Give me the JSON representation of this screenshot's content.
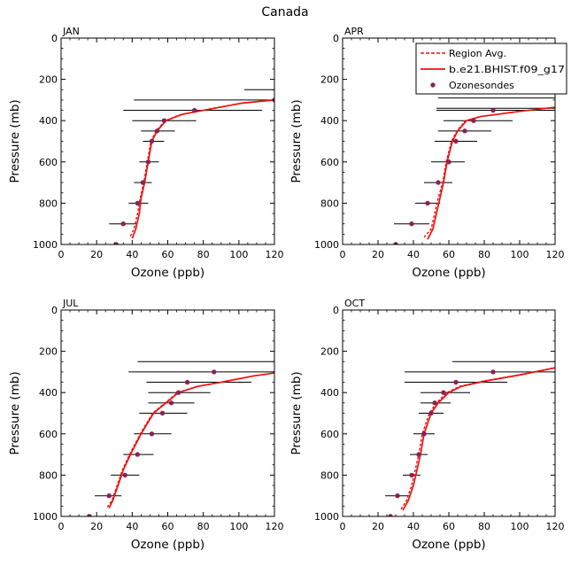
{
  "figure_title": "Canada",
  "legend": {
    "region_avg": "Region Avg.",
    "model": "b.e21.BHIST.f09_g17",
    "obs": "Ozonesondes"
  },
  "colors": {
    "model_line": "#ee1111",
    "obs_point": "#8b2252",
    "error_bar": "#000000",
    "frame": "#000000"
  },
  "chart_data": [
    {
      "type": "line",
      "title": "JAN",
      "xlabel": "Ozone (ppb)",
      "ylabel": "Pressure (mb)",
      "xlim": [
        0,
        120
      ],
      "ylim": [
        1000,
        0
      ],
      "xticks": [
        0,
        20,
        40,
        60,
        80,
        100,
        120
      ],
      "yticks": [
        0,
        200,
        400,
        600,
        800,
        1000
      ],
      "model": {
        "ozone": [
          40,
          42,
          44,
          45,
          47,
          49,
          51,
          54,
          59,
          68,
          80,
          102,
          120
        ],
        "pressure": [
          970,
          925,
          850,
          775,
          700,
          600,
          500,
          450,
          400,
          370,
          350,
          315,
          300
        ]
      },
      "region_avg": {
        "ozone": [
          39,
          41,
          43,
          44.5,
          46.5,
          48.5,
          50.5,
          53.5,
          58.5,
          67.5,
          79.5,
          101.5,
          120
        ],
        "pressure": [
          960,
          925,
          850,
          775,
          700,
          600,
          500,
          450,
          400,
          370,
          350,
          315,
          300
        ]
      },
      "sondes": {
        "ozone": [
          31,
          35,
          43,
          46,
          49,
          51,
          54,
          58,
          75,
          120
        ],
        "pressure": [
          1000,
          900,
          800,
          700,
          600,
          500,
          450,
          400,
          350,
          300
        ],
        "err_low": [
          26,
          27,
          38,
          41,
          44,
          46,
          45,
          40,
          35,
          41
        ],
        "err_high": [
          36,
          43,
          49,
          51,
          55,
          58,
          64,
          76,
          113,
          120
        ]
      },
      "extra_bars": [
        {
          "pressure": 250,
          "low": 103,
          "high": 120
        }
      ]
    },
    {
      "type": "line",
      "title": "APR",
      "xlabel": "Ozone (ppb)",
      "ylabel": "Pressure (mb)",
      "xlim": [
        0,
        120
      ],
      "ylim": [
        1000,
        0
      ],
      "xticks": [
        0,
        20,
        40,
        60,
        80,
        100,
        120
      ],
      "yticks": [
        0,
        200,
        400,
        600,
        800,
        1000
      ],
      "model": {
        "ozone": [
          48,
          51,
          53,
          55,
          57,
          59,
          62,
          65,
          70,
          78,
          87,
          100,
          120
        ],
        "pressure": [
          975,
          925,
          850,
          775,
          700,
          600,
          500,
          450,
          400,
          380,
          370,
          355,
          335
        ]
      },
      "region_avg": {
        "ozone": [
          46,
          50,
          52,
          54,
          56.5,
          58.5,
          61.5,
          64.5,
          69.5,
          77.5,
          86.5,
          99.5,
          120
        ],
        "pressure": [
          965,
          925,
          850,
          775,
          700,
          600,
          500,
          450,
          400,
          380,
          370,
          355,
          335
        ]
      },
      "sondes": {
        "ozone": [
          30,
          39,
          48,
          54,
          60,
          64,
          69,
          74,
          85
        ],
        "pressure": [
          1000,
          900,
          800,
          700,
          600,
          500,
          450,
          400,
          350
        ],
        "err_low": [
          21,
          29,
          41,
          46,
          50,
          52,
          54,
          57,
          53
        ],
        "err_high": [
          39,
          49,
          55,
          62,
          69,
          76,
          84,
          96,
          120
        ]
      },
      "extra_bars": [
        {
          "pressure": 20,
          "low": 120,
          "high": 120
        },
        {
          "pressure": 290,
          "low": 54,
          "high": 120
        },
        {
          "pressure": 340,
          "low": 53,
          "high": 120
        }
      ]
    },
    {
      "type": "line",
      "title": "JUL",
      "xlabel": "Ozone (ppb)",
      "ylabel": "Pressure (mb)",
      "xlim": [
        0,
        120
      ],
      "ylim": [
        1000,
        0
      ],
      "xticks": [
        0,
        20,
        40,
        60,
        80,
        100,
        120
      ],
      "yticks": [
        0,
        200,
        400,
        600,
        800,
        1000
      ],
      "model": {
        "ozone": [
          27,
          29,
          32,
          35,
          39,
          45,
          52,
          59,
          66,
          77,
          90,
          108,
          120
        ],
        "pressure": [
          960,
          925,
          850,
          775,
          700,
          600,
          500,
          450,
          400,
          370,
          350,
          320,
          305
        ]
      },
      "region_avg": {
        "ozone": [
          26,
          28.5,
          31.5,
          34.5,
          38.5,
          44.5,
          51.5,
          58.5,
          65.5,
          76.5,
          89.5,
          107.5,
          120
        ],
        "pressure": [
          955,
          925,
          850,
          775,
          700,
          600,
          500,
          450,
          400,
          370,
          350,
          320,
          305
        ]
      },
      "sondes": {
        "ozone": [
          16,
          27,
          36,
          43,
          51,
          57,
          62,
          66,
          71,
          86
        ],
        "pressure": [
          1000,
          900,
          800,
          700,
          600,
          500,
          450,
          400,
          350,
          300
        ],
        "err_low": [
          8,
          19,
          28,
          35,
          41,
          44,
          49,
          49,
          48,
          38
        ],
        "err_high": [
          24,
          34,
          44,
          52,
          62,
          71,
          75,
          84,
          107,
          120
        ]
      },
      "extra_bars": [
        {
          "pressure": 250,
          "low": 43,
          "high": 120
        }
      ]
    },
    {
      "type": "line",
      "title": "OCT",
      "xlabel": "Ozone (ppb)",
      "ylabel": "Pressure (mb)",
      "xlim": [
        0,
        120
      ],
      "ylim": [
        1000,
        0
      ],
      "xticks": [
        0,
        20,
        40,
        60,
        80,
        100,
        120
      ],
      "yticks": [
        0,
        200,
        400,
        600,
        800,
        1000
      ],
      "model": {
        "ozone": [
          34,
          37,
          40,
          42,
          44,
          46,
          50,
          54,
          60,
          67,
          80,
          100,
          120
        ],
        "pressure": [
          970,
          925,
          850,
          775,
          700,
          600,
          500,
          450,
          400,
          370,
          345,
          315,
          280
        ]
      },
      "region_avg": {
        "ozone": [
          33,
          36,
          39,
          41,
          43,
          45,
          49,
          53,
          59,
          66,
          79,
          99,
          120
        ],
        "pressure": [
          965,
          925,
          850,
          775,
          700,
          600,
          500,
          450,
          400,
          370,
          345,
          315,
          280
        ]
      },
      "sondes": {
        "ozone": [
          27,
          31,
          39,
          43,
          46,
          50,
          52,
          57,
          64,
          85
        ],
        "pressure": [
          1000,
          900,
          800,
          700,
          600,
          500,
          450,
          400,
          350,
          300
        ],
        "err_low": [
          19,
          24,
          34,
          38,
          40,
          43,
          44,
          44,
          35,
          35
        ],
        "err_high": [
          35,
          38,
          44,
          48,
          52,
          57,
          61,
          72,
          93,
          120
        ]
      },
      "extra_bars": [
        {
          "pressure": 250,
          "low": 62,
          "high": 120
        }
      ]
    }
  ]
}
